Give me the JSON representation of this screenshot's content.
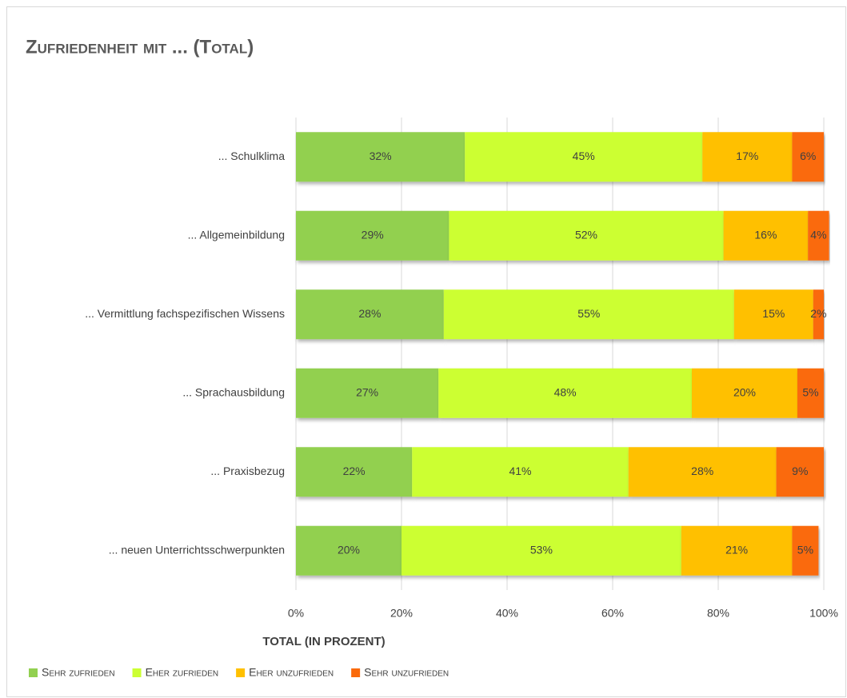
{
  "chart_data": {
    "type": "stacked-barh",
    "title": "Zufriedenheit mit ... (Total)",
    "xlabel": "TOTAL (IN PROZENT)",
    "categories": [
      "... Schulklima",
      "... Allgemeinbildung",
      "... Vermittlung fachspezifischen Wissens",
      "... Sprachausbildung",
      "... Praxisbezug",
      "... neuen Unterrichtsschwerpunkten"
    ],
    "series": [
      {
        "name": "Sehr zufrieden",
        "color": "#92d050",
        "values": [
          32,
          29,
          28,
          27,
          22,
          20
        ],
        "value_labels": [
          "32%",
          "29%",
          "28%",
          "27%",
          "22%",
          "20%"
        ]
      },
      {
        "name": "Eher zufrieden",
        "color": "#ccff33",
        "values": [
          45,
          52,
          55,
          48,
          41,
          53
        ],
        "value_labels": [
          "45%",
          "52%",
          "55%",
          "48%",
          "41%",
          "53%"
        ]
      },
      {
        "name": "Eher unzufrieden",
        "color": "#ffc000",
        "values": [
          17,
          16,
          15,
          20,
          28,
          21
        ],
        "value_labels": [
          "17%",
          "16%",
          "15%",
          "20%",
          "28%",
          "21%"
        ]
      },
      {
        "name": "Sehr unzufrieden",
        "color": "#fa6a0a",
        "values": [
          6,
          4,
          2,
          5,
          9,
          5
        ],
        "value_labels": [
          "6%",
          "4%",
          "2%",
          "5%",
          "9%",
          "5%"
        ]
      }
    ],
    "xlim": [
      0,
      100
    ],
    "xticks": [
      {
        "value": 0,
        "label": "0%"
      },
      {
        "value": 20,
        "label": "20%"
      },
      {
        "value": 40,
        "label": "40%"
      },
      {
        "value": 60,
        "label": "60%"
      },
      {
        "value": 80,
        "label": "80%"
      },
      {
        "value": 100,
        "label": "100%"
      }
    ],
    "grid": true,
    "legend": "bottom"
  }
}
